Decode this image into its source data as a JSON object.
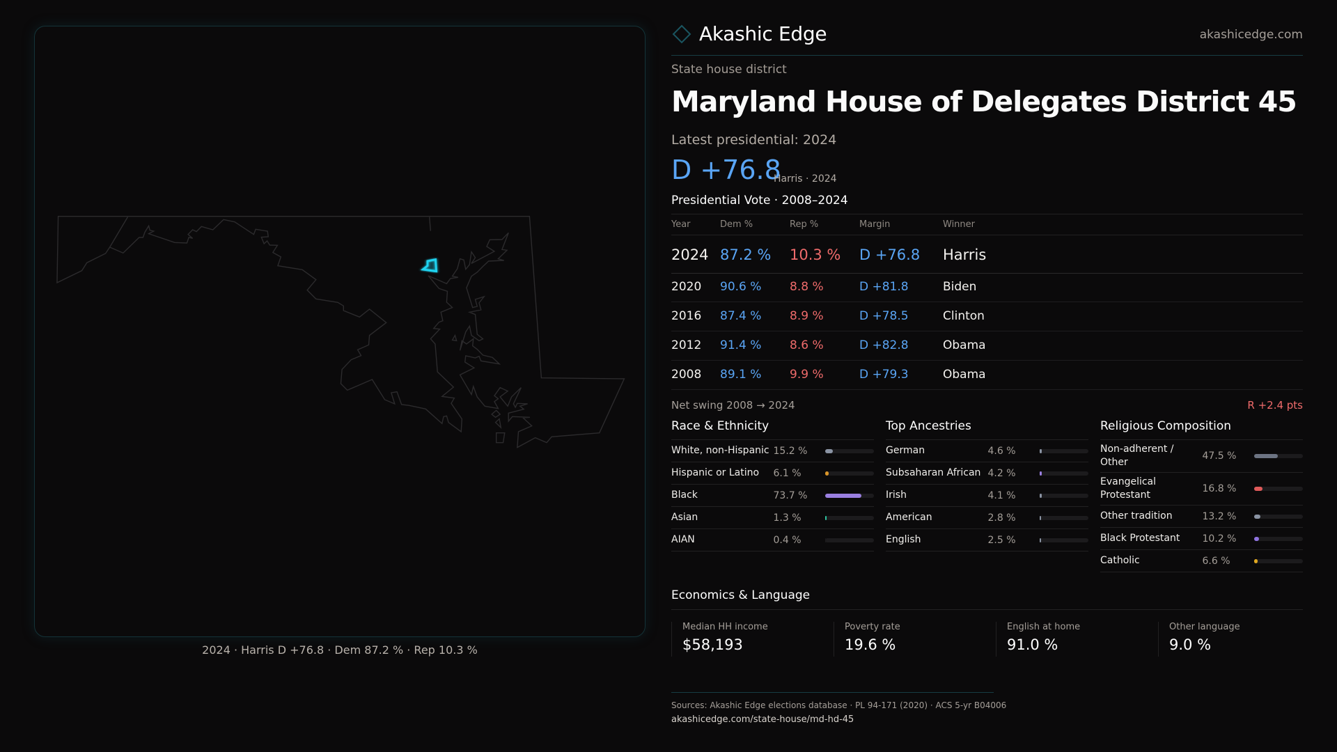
{
  "map": {
    "caption": "2024 · Harris D +76.8 · Dem 87.2 % · Rep 10.3 %",
    "highlight_color": "#1fd3f0"
  },
  "header": {
    "brand": "Akashic Edge",
    "logo_icon": "diamond-outline-icon",
    "site": "akashicedge.com"
  },
  "district": {
    "kicker": "State house district",
    "title": "Maryland House of Delegates District 45",
    "latest_label": "Latest presidential: 2024",
    "margin": "D +76.8",
    "margin_sub": "Harris · 2024"
  },
  "presidential": {
    "title": "Presidential Vote · 2008–2024",
    "columns": [
      "Year",
      "Dem %",
      "Rep %",
      "Margin",
      "Winner"
    ],
    "rows": [
      {
        "year": "2024",
        "dem": "87.2 %",
        "rep": "10.3 %",
        "margin": "D +76.8",
        "winner": "Harris"
      },
      {
        "year": "2020",
        "dem": "90.6 %",
        "rep": "8.8 %",
        "margin": "D +81.8",
        "winner": "Biden"
      },
      {
        "year": "2016",
        "dem": "87.4 %",
        "rep": "8.9 %",
        "margin": "D +78.5",
        "winner": "Clinton"
      },
      {
        "year": "2012",
        "dem": "91.4 %",
        "rep": "8.6 %",
        "margin": "D +82.8",
        "winner": "Obama"
      },
      {
        "year": "2008",
        "dem": "89.1 %",
        "rep": "9.9 %",
        "margin": "D +79.3",
        "winner": "Obama"
      }
    ],
    "swing_label": "Net swing 2008 → 2024",
    "swing_value": "R +2.4 pts"
  },
  "sections": [
    {
      "title": "Race & Ethnicity",
      "items": [
        {
          "label": "White, non-Hispanic",
          "value": "15.2 %",
          "pct": 15.2,
          "color": "#8a93a3"
        },
        {
          "label": "Hispanic or Latino",
          "value": "6.1 %",
          "pct": 6.1,
          "color": "#d9952a"
        },
        {
          "label": "Black",
          "value": "73.7 %",
          "pct": 73.7,
          "color": "#9a7fe0"
        },
        {
          "label": "Asian",
          "value": "1.3 %",
          "pct": 1.3,
          "color": "#2ec4a0"
        },
        {
          "label": "AIAN",
          "value": "0.4 %",
          "pct": 0.4,
          "color": "#1c1b1d"
        }
      ]
    },
    {
      "title": "Top Ancestries",
      "items": [
        {
          "label": "German",
          "value": "4.6 %",
          "pct": 4.6,
          "color": "#8a93a3"
        },
        {
          "label": "Subsaharan African",
          "value": "4.2 %",
          "pct": 4.2,
          "color": "#9a7fe0"
        },
        {
          "label": "Irish",
          "value": "4.1 %",
          "pct": 4.1,
          "color": "#8a93a3"
        },
        {
          "label": "American",
          "value": "2.8 %",
          "pct": 2.8,
          "color": "#8a93a3"
        },
        {
          "label": "English",
          "value": "2.5 %",
          "pct": 2.5,
          "color": "#8a93a3"
        }
      ]
    },
    {
      "title": "Religious Composition",
      "items": [
        {
          "label": "Non-adherent / Other",
          "value": "47.5 %",
          "pct": 47.5,
          "color": "#6c7382"
        },
        {
          "label": "Evangelical Protestant",
          "value": "16.8 %",
          "pct": 16.8,
          "color": "#e05a5a"
        },
        {
          "label": "Other tradition",
          "value": "13.2 %",
          "pct": 13.2,
          "color": "#8a93a3"
        },
        {
          "label": "Black Protestant",
          "value": "10.2 %",
          "pct": 10.2,
          "color": "#8f73e0"
        },
        {
          "label": "Catholic",
          "value": "6.6 %",
          "pct": 6.6,
          "color": "#e0a820"
        }
      ]
    }
  ],
  "economics": {
    "title": "Economics & Language",
    "stats": [
      {
        "label": "Median HH income",
        "value": "$58,193"
      },
      {
        "label": "Poverty rate",
        "value": "19.6 %"
      },
      {
        "label": "English at home",
        "value": "91.0 %"
      },
      {
        "label": "Other language",
        "value": "9.0 %"
      }
    ]
  },
  "footer": {
    "sources": "Sources: Akashic Edge elections database · PL 94-171 (2020) · ACS 5-yr B04006",
    "url": "akashicedge.com/state-house/md-hd-45"
  },
  "colors": {
    "dem": "#5aa5f5",
    "rep": "#ef6b6b",
    "accent": "#1fd3f0",
    "background": "#0b0a0b"
  }
}
